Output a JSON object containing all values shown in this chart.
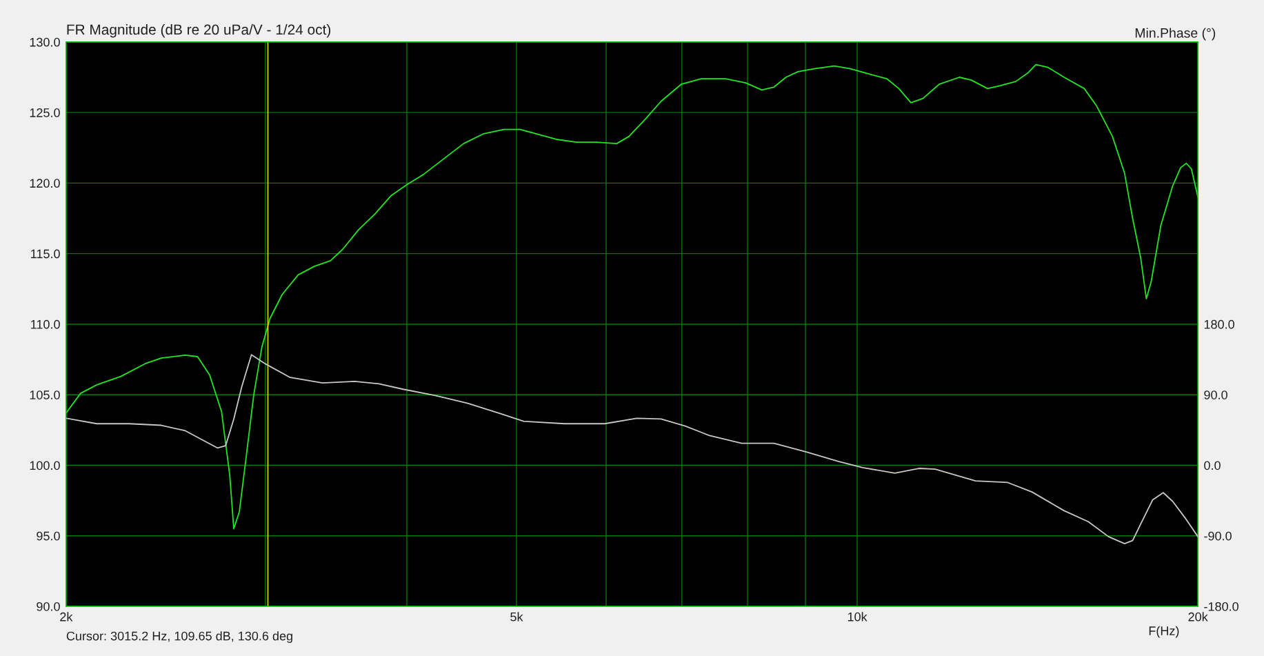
{
  "chart_data": {
    "type": "line",
    "title": "FR Magnitude (dB re 20 uPa/V - 1/24 oct)",
    "y2label": "Min.Phase (°)",
    "xlabel": "F(Hz)",
    "annotations": [
      "Cursor: 3015.2 Hz, 109.65 dB, 130.6 deg"
    ],
    "log": "x",
    "grid": true,
    "marker": "none",
    "line_style": "solid",
    "xlim": [
      2000,
      20000
    ],
    "xticks": [
      {
        "value": 2000,
        "label": "2k"
      },
      {
        "value": 3000,
        "label": null
      },
      {
        "value": 4000,
        "label": null
      },
      {
        "value": 5000,
        "label": "5k"
      },
      {
        "value": 6000,
        "label": null
      },
      {
        "value": 7000,
        "label": null
      },
      {
        "value": 8000,
        "label": null
      },
      {
        "value": 9000,
        "label": null
      },
      {
        "value": 10000,
        "label": "10k"
      },
      {
        "value": 20000,
        "label": "20k"
      }
    ],
    "ylim": [
      90,
      130
    ],
    "yticks": [
      {
        "value": 90,
        "label": "90.0"
      },
      {
        "value": 95,
        "label": "95.0"
      },
      {
        "value": 100,
        "label": "100.0"
      },
      {
        "value": 105,
        "label": "105.0"
      },
      {
        "value": 110,
        "label": "110.0"
      },
      {
        "value": 115,
        "label": "115.0"
      },
      {
        "value": 120,
        "label": "120.0"
      },
      {
        "value": 125,
        "label": "125.0"
      },
      {
        "value": 130,
        "label": "130.0"
      }
    ],
    "y2lim": [
      -180,
      540
    ],
    "y2ticks": [
      {
        "value": -180,
        "label": "-180.0"
      },
      {
        "value": -90,
        "label": "-90.0"
      },
      {
        "value": 0,
        "label": "0.0"
      },
      {
        "value": 90,
        "label": "90.0"
      },
      {
        "value": 180,
        "label": "180.0"
      }
    ],
    "ref_lines": [
      {
        "axis": "x",
        "value": 3015.2,
        "color": "#d8d800"
      }
    ],
    "series": [
      {
        "color": "#22e622",
        "x": [
          2000,
          2060,
          2129,
          2236,
          2349,
          2427,
          2549,
          2613,
          2678,
          2744,
          2790,
          2813,
          2845,
          2883,
          2930,
          2979,
          3028,
          3104,
          3207,
          3314,
          3425,
          3510,
          3627,
          3748,
          3873,
          4002,
          4136,
          4309,
          4490,
          4678,
          4874,
          5036,
          5203,
          5421,
          5649,
          5885,
          6131,
          6284,
          6493,
          6710,
          6990,
          7283,
          7650,
          7970,
          8236,
          8441,
          8651,
          8866,
          9162,
          9545,
          9863,
          10277,
          10620,
          10884,
          11155,
          11433,
          11814,
          12310,
          12615,
          13036,
          13361,
          13807,
          14150,
          14384,
          14742,
          15234,
          15872,
          16267,
          16809,
          17228,
          17513,
          17803,
          18009,
          18186,
          18548,
          18999,
          19313,
          19536,
          19739,
          20000
        ],
        "values": [
          103.7,
          105.1,
          105.7,
          106.3,
          107.2,
          107.6,
          107.8,
          107.7,
          106.4,
          103.8,
          99.3,
          95.5,
          96.7,
          100.4,
          105.0,
          108.4,
          110.4,
          112.1,
          113.5,
          114.1,
          114.5,
          115.3,
          116.7,
          117.8,
          119.1,
          119.9,
          120.6,
          121.7,
          122.8,
          123.5,
          123.8,
          123.8,
          123.5,
          123.1,
          122.9,
          122.9,
          122.8,
          123.3,
          124.5,
          125.8,
          127.0,
          127.4,
          127.4,
          127.1,
          126.6,
          126.8,
          127.5,
          127.9,
          128.1,
          128.3,
          128.1,
          127.7,
          127.4,
          126.7,
          125.7,
          126.0,
          127.0,
          127.5,
          127.3,
          126.7,
          126.9,
          127.2,
          127.8,
          128.4,
          128.2,
          127.5,
          126.7,
          125.5,
          123.3,
          120.7,
          117.5,
          114.7,
          111.8,
          113.0,
          117.0,
          119.8,
          121.1,
          121.4,
          121.0,
          119.0
        ]
      },
      {
        "color": "#c8c8c8",
        "axis": "y2",
        "x": [
          2000,
          2129,
          2273,
          2427,
          2549,
          2634,
          2722,
          2767,
          2813,
          2859,
          2916,
          3003,
          3155,
          3369,
          3597,
          3779,
          3970,
          4239,
          4527,
          4834,
          5077,
          5511,
          5982,
          6388,
          6710,
          7047,
          7403,
          7905,
          8441,
          9014,
          9624,
          10109,
          10795,
          11339,
          11718,
          12719,
          13582,
          14267,
          15234,
          16002,
          16672,
          17228,
          17513,
          17803,
          18246,
          18639,
          18999,
          19482,
          20000
        ],
        "values": [
          60,
          53,
          53,
          51,
          44,
          33,
          22,
          25,
          59,
          100,
          141,
          129,
          112,
          105,
          107,
          104,
          97,
          89,
          79,
          66,
          56,
          53,
          53,
          60,
          59,
          50,
          38,
          28,
          28,
          17,
          5,
          -3,
          -10,
          -4,
          -5,
          -20,
          -22,
          -34,
          -58,
          -72,
          -91,
          -100,
          -96,
          -75,
          -44,
          -35,
          -46,
          -67,
          -91
        ]
      }
    ]
  }
}
